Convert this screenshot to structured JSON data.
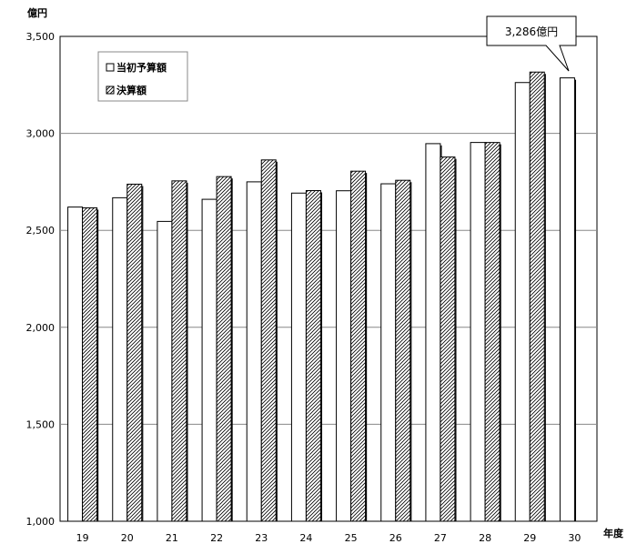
{
  "chart_data": {
    "type": "bar",
    "y_unit": "億円",
    "x_unit": "年度",
    "categories": [
      "19",
      "20",
      "21",
      "22",
      "23",
      "24",
      "25",
      "26",
      "27",
      "28",
      "29",
      "30"
    ],
    "series": [
      {
        "name": "当初予算額",
        "pattern": "plain",
        "values": [
          2620,
          2668,
          2546,
          2660,
          2750,
          2692,
          2704,
          2740,
          2947,
          2953,
          3262,
          3286
        ]
      },
      {
        "name": "決算額",
        "pattern": "hatched",
        "values": [
          2616,
          2738,
          2755,
          2777,
          2863,
          2705,
          2805,
          2758,
          2878,
          2953,
          3316,
          null
        ]
      }
    ],
    "ylim": [
      1000,
      3500
    ],
    "yticks": [
      "1,000",
      "1,500",
      "2,000",
      "2,500",
      "3,000",
      "3,500"
    ],
    "ytick_values": [
      1000,
      1500,
      2000,
      2500,
      3000,
      3500
    ],
    "grid": true,
    "legend_position": "top-left",
    "annotation": {
      "text": "3,286億円",
      "category": "30",
      "series": 0
    }
  }
}
